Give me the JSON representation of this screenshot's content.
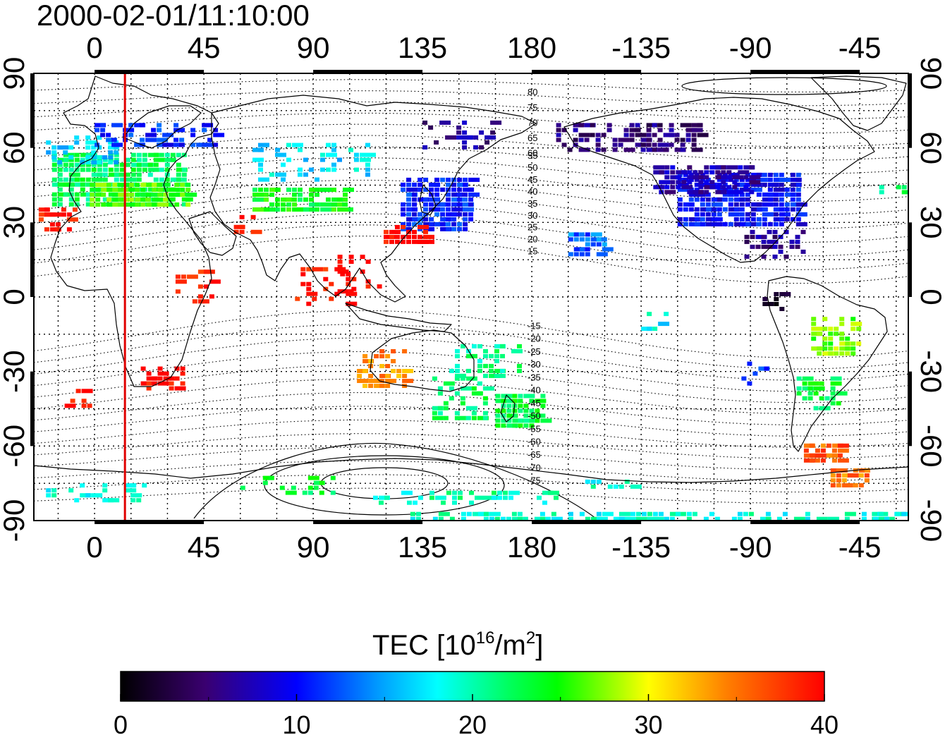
{
  "timestamp": "2000-02-01/11:10:00",
  "axes": {
    "lon_top": [
      "0",
      "45",
      "90",
      "135",
      "180",
      "-135",
      "-90",
      "-45"
    ],
    "lon_bottom": [
      "0",
      "45",
      "90",
      "135",
      "180",
      "-135",
      "-90",
      "-45"
    ],
    "lat_left": [
      "90",
      "60",
      "30",
      "0",
      "-30",
      "-60",
      "-90"
    ],
    "lat_right": [
      "90",
      "60",
      "30",
      "0",
      "-30",
      "-60",
      "-90"
    ]
  },
  "magnetic_contour_labels": [
    "80",
    "75",
    "70",
    "65",
    "60",
    "55",
    "50",
    "45",
    "40",
    "35",
    "30",
    "25",
    "20",
    "15",
    "-15",
    "-20",
    "-25",
    "-30",
    "-35",
    "-40",
    "-45",
    "-50",
    "-55",
    "-60",
    "-65",
    "-70",
    "-75"
  ],
  "colorbar": {
    "title_main": "TEC  [10",
    "title_exp1": "16",
    "title_mid": "/m",
    "title_exp2": "2",
    "title_end": "]",
    "ticks": [
      "0",
      "10",
      "20",
      "30",
      "40"
    ],
    "min": 0,
    "max": 40,
    "colors": [
      "#000000",
      "#3a0070",
      "#0000ff",
      "#00ffff",
      "#00ff00",
      "#ffff00",
      "#ff8000",
      "#ff0000"
    ]
  },
  "terminator_longitude": 12.5,
  "colors": {
    "terminator": "#e00000"
  }
}
